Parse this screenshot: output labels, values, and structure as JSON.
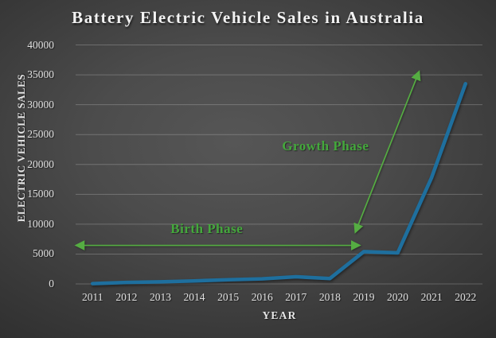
{
  "chart_data": {
    "type": "line",
    "title": "Battery Electric Vehicle Sales in Australia",
    "xlabel": "YEAR",
    "ylabel": "ELECTRIC VEHICLE SALES",
    "categories": [
      "2011",
      "2012",
      "2013",
      "2014",
      "2015",
      "2016",
      "2017",
      "2018",
      "2019",
      "2020",
      "2021",
      "2022"
    ],
    "values": [
      50,
      250,
      350,
      500,
      700,
      850,
      1200,
      900,
      5400,
      5200,
      17800,
      33500
    ],
    "ylim": [
      0,
      40000
    ],
    "ytick_step": 5000,
    "grid": true,
    "legend": false,
    "series_name": "Battery electric vehicle sales",
    "annotations": [
      {
        "label": "Birth Phase",
        "label_anchor": {
          "xi": 3.87,
          "v": 9200
        },
        "arrow": {
          "from": {
            "xi": 0.04,
            "v": 6450
          },
          "to": {
            "xi": 8.35,
            "v": 6450
          }
        }
      },
      {
        "label": "Growth Phase",
        "label_anchor": {
          "xi": 7.37,
          "v": 23000
        },
        "arrow": {
          "from": {
            "xi": 8.26,
            "v": 8800
          },
          "to": {
            "xi": 10.12,
            "v": 35400
          }
        }
      }
    ]
  },
  "colors": {
    "series": "#1e6f9e",
    "annotation_green": "#44a83c",
    "arrow_green": "#55ad42",
    "gridline": "rgba(255,255,255,0.22)",
    "tick_text": "#e0e0e0"
  }
}
